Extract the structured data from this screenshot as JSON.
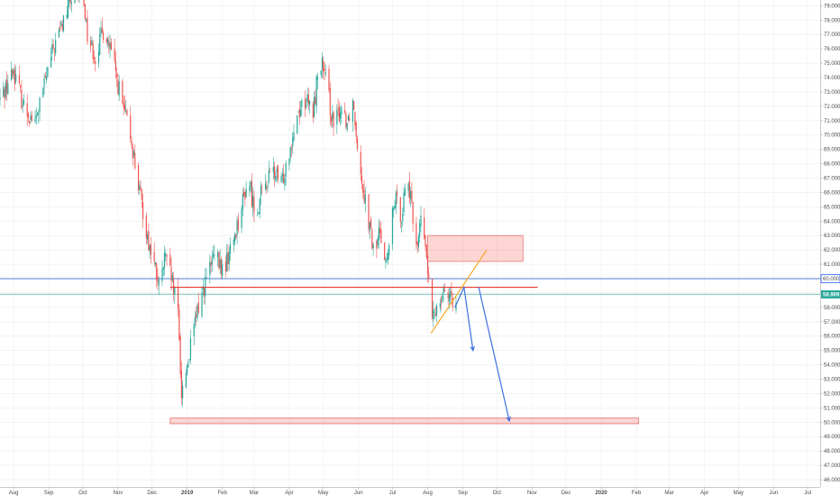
{
  "chart_data": {
    "type": "candlestick",
    "y_axis": {
      "ticks": [
        "79.000",
        "78.000",
        "77.000",
        "76.000",
        "75.000",
        "74.000",
        "73.000",
        "72.000",
        "71.000",
        "70.000",
        "69.000",
        "68.000",
        "67.000",
        "66.000",
        "65.000",
        "64.000",
        "63.000",
        "62.000",
        "61.000",
        "60.000",
        "59.000",
        "58.000",
        "57.000",
        "56.000",
        "55.000",
        "54.000",
        "53.000",
        "52.000",
        "51.000",
        "50.000",
        "49.000",
        "48.000",
        "47.000",
        "46.000"
      ],
      "ylim": [
        45.5,
        79.4
      ],
      "side": "right"
    },
    "x_axis": {
      "ticks": [
        "Aug",
        "Sep",
        "Oct",
        "Nov",
        "Dec",
        "2019",
        "Feb",
        "Mar",
        "Apr",
        "May",
        "Jun",
        "Jul",
        "Aug",
        "Sep",
        "Oct",
        "Nov",
        "Dec",
        "2020",
        "Feb",
        "Mar",
        "Apr",
        "May",
        "Jun",
        "Jul"
      ],
      "bold_ticks": [
        "2019",
        "2020"
      ],
      "start_date": "2018-07-20"
    },
    "price_tags": [
      {
        "label": "60.000",
        "value": 60.0,
        "color": "#2962ff",
        "style": "outline"
      },
      {
        "label": "58.909",
        "value": 58.909,
        "color": "#26a69a",
        "style": "filled"
      }
    ],
    "horizontal_lines": [
      {
        "value": 60.0,
        "color": "#4a7bd1"
      },
      {
        "value": 58.909,
        "color": "#7ec8c0"
      }
    ],
    "path_points": [
      [
        "2018-07-20",
        72.5
      ],
      [
        "2018-08-01",
        74.5
      ],
      [
        "2018-08-10",
        72.0
      ],
      [
        "2018-08-20",
        70.8
      ],
      [
        "2018-08-28",
        73.5
      ],
      [
        "2018-09-05",
        76.0
      ],
      [
        "2018-09-12",
        77.5
      ],
      [
        "2018-09-20",
        79.3
      ],
      [
        "2018-10-01",
        80.0
      ],
      [
        "2018-10-05",
        77.0
      ],
      [
        "2018-10-12",
        75.5
      ],
      [
        "2018-10-20",
        77.5
      ],
      [
        "2018-10-28",
        75.0
      ],
      [
        "2018-11-05",
        72.0
      ],
      [
        "2018-11-12",
        70.0
      ],
      [
        "2018-11-20",
        66.0
      ],
      [
        "2018-11-28",
        62.5
      ],
      [
        "2018-12-03",
        61.0
      ],
      [
        "2018-12-08",
        59.0
      ],
      [
        "2018-12-12",
        61.5
      ],
      [
        "2018-12-18",
        60.0
      ],
      [
        "2018-12-24",
        57.5
      ],
      [
        "2018-12-27",
        52.0
      ],
      [
        "2019-01-01",
        54.0
      ],
      [
        "2019-01-07",
        56.5
      ],
      [
        "2019-01-12",
        58.5
      ],
      [
        "2019-01-18",
        60.0
      ],
      [
        "2019-01-25",
        61.5
      ],
      [
        "2019-02-02",
        60.5
      ],
      [
        "2019-02-10",
        62.5
      ],
      [
        "2019-02-18",
        65.0
      ],
      [
        "2019-02-24",
        67.0
      ],
      [
        "2019-03-02",
        64.5
      ],
      [
        "2019-03-10",
        66.5
      ],
      [
        "2019-03-18",
        67.5
      ],
      [
        "2019-03-25",
        66.5
      ],
      [
        "2019-04-01",
        69.0
      ],
      [
        "2019-04-08",
        71.5
      ],
      [
        "2019-04-15",
        72.5
      ],
      [
        "2019-04-22",
        71.5
      ],
      [
        "2019-04-28",
        75.5
      ],
      [
        "2019-05-05",
        73.0
      ],
      [
        "2019-05-10",
        70.5
      ],
      [
        "2019-05-17",
        72.0
      ],
      [
        "2019-05-22",
        71.0
      ],
      [
        "2019-05-27",
        72.5
      ],
      [
        "2019-06-03",
        67.5
      ],
      [
        "2019-06-10",
        64.0
      ],
      [
        "2019-06-15",
        61.5
      ],
      [
        "2019-06-20",
        63.5
      ],
      [
        "2019-06-26",
        61.0
      ],
      [
        "2019-07-03",
        65.5
      ],
      [
        "2019-07-09",
        64.5
      ],
      [
        "2019-07-14",
        67.5
      ],
      [
        "2019-07-19",
        64.0
      ],
      [
        "2019-07-23",
        62.5
      ],
      [
        "2019-07-27",
        64.5
      ],
      [
        "2019-08-01",
        60.5
      ],
      [
        "2019-08-05",
        57.0
      ],
      [
        "2019-08-10",
        58.5
      ],
      [
        "2019-08-16",
        59.5
      ],
      [
        "2019-08-22",
        58.2
      ],
      [
        "2019-08-26",
        59.0
      ]
    ],
    "zones": [
      {
        "name": "resistance-zone",
        "x1": "2019-08-01",
        "x2": "2019-10-24",
        "y1": 61.2,
        "y2": 63.0,
        "fill": "rgba(244,67,54,0.22)",
        "stroke": "#e57373"
      },
      {
        "name": "support-zone",
        "x1": "2018-12-17",
        "x2": "2020-02-03",
        "y1": 49.9,
        "y2": 50.3,
        "fill": "rgba(244,67,54,0.22)",
        "stroke": "#e57373"
      }
    ],
    "drawn_lines": [
      {
        "name": "red-level-line",
        "points": [
          [
            "2018-12-17",
            59.4
          ],
          [
            "2019-11-06",
            59.4
          ]
        ],
        "color": "#e53935"
      },
      {
        "name": "orange-trend-line",
        "points": [
          [
            "2019-08-04",
            56.2
          ],
          [
            "2019-09-22",
            62.0
          ]
        ],
        "color": "#f5a623"
      },
      {
        "name": "blue-projection-path",
        "points": [
          [
            "2019-08-25",
            58.0
          ],
          [
            "2019-09-02",
            59.4
          ],
          [
            "2019-09-10",
            55.0
          ]
        ],
        "color": "#3d6fe0",
        "arrow": true
      },
      {
        "name": "blue-projection-path-2",
        "points": [
          [
            "2019-09-15",
            59.4
          ],
          [
            "2019-10-12",
            50.1
          ]
        ],
        "color": "#3d6fe0",
        "arrow": true
      }
    ]
  }
}
